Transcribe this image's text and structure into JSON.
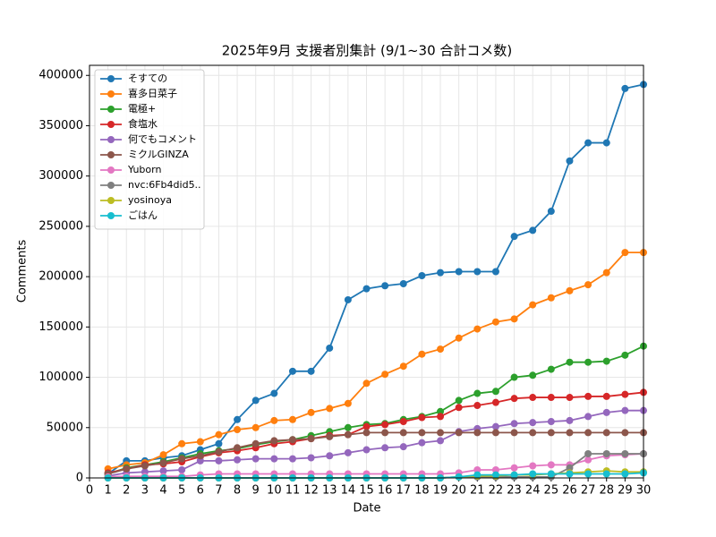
{
  "chart_data": {
    "type": "line",
    "title": "2025年9月 支援者別集計 (9/1~30 合計コメ数)",
    "x_label": "Date",
    "y_label": "Comments",
    "x": [
      1,
      2,
      3,
      4,
      5,
      6,
      7,
      8,
      9,
      10,
      11,
      12,
      13,
      14,
      15,
      16,
      17,
      18,
      19,
      20,
      21,
      22,
      23,
      24,
      25,
      26,
      27,
      28,
      29,
      30
    ],
    "xlim": [
      0,
      30
    ],
    "xticks": [
      0,
      1,
      2,
      3,
      4,
      5,
      6,
      7,
      8,
      9,
      10,
      11,
      12,
      13,
      14,
      15,
      16,
      17,
      18,
      19,
      20,
      21,
      22,
      23,
      24,
      25,
      26,
      27,
      28,
      29,
      30
    ],
    "ylim": [
      0,
      410000
    ],
    "yticks": [
      0,
      50000,
      100000,
      150000,
      200000,
      250000,
      300000,
      350000,
      400000
    ],
    "grid": true,
    "legend": "upper-left",
    "series": [
      {
        "name": "そすての",
        "color": "#1f77b4",
        "values": [
          4000,
          17000,
          17000,
          20000,
          22000,
          28000,
          34000,
          58000,
          77000,
          84000,
          106000,
          106000,
          129000,
          177000,
          188000,
          191000,
          193000,
          201000,
          204000,
          205000,
          205000,
          205000,
          240000,
          246000,
          265000,
          315000,
          333000,
          333000,
          387000,
          391000
        ]
      },
      {
        "name": "喜多日菜子",
        "color": "#ff7f0e",
        "values": [
          9000,
          13000,
          15000,
          23000,
          34000,
          36000,
          43000,
          48000,
          50000,
          57000,
          58000,
          65000,
          69000,
          74000,
          94000,
          103000,
          111000,
          123000,
          128000,
          139000,
          148000,
          155000,
          158000,
          172000,
          179000,
          186000,
          192000,
          204000,
          224000,
          224000
        ]
      },
      {
        "name": "電極+",
        "color": "#2ca02c",
        "values": [
          4000,
          10000,
          13000,
          16000,
          20000,
          24000,
          27000,
          29000,
          33000,
          36000,
          38000,
          42000,
          46000,
          50000,
          53000,
          54000,
          58000,
          61000,
          66000,
          77000,
          84000,
          86000,
          100000,
          102000,
          108000,
          115000,
          115000,
          116000,
          122000,
          131000
        ]
      },
      {
        "name": "食塩水",
        "color": "#d62728",
        "values": [
          5000,
          9000,
          13000,
          14000,
          16000,
          21000,
          25000,
          27000,
          30000,
          34000,
          36000,
          39000,
          42000,
          43000,
          51000,
          53000,
          56000,
          60000,
          61000,
          70000,
          72000,
          75000,
          79000,
          80000,
          80000,
          80000,
          81000,
          81000,
          83000,
          85000
        ]
      },
      {
        "name": "何でもコメント",
        "color": "#9467bd",
        "values": [
          2000,
          5000,
          6000,
          7000,
          8000,
          17000,
          17000,
          18000,
          19000,
          19000,
          19000,
          20000,
          22000,
          25000,
          28000,
          30000,
          31000,
          35000,
          37000,
          46000,
          49000,
          51000,
          54000,
          55000,
          56000,
          57000,
          61000,
          65000,
          67000,
          67000
        ]
      },
      {
        "name": "ミクルGINZA",
        "color": "#8c564b",
        "values": [
          4000,
          9000,
          12000,
          15000,
          19000,
          22000,
          26000,
          30000,
          34000,
          37000,
          38000,
          39000,
          41000,
          43000,
          45000,
          45000,
          45000,
          45000,
          45000,
          45000,
          45000,
          45000,
          45000,
          45000,
          45000,
          45000,
          45000,
          45000,
          45000,
          45000
        ]
      },
      {
        "name": "Yuborn",
        "color": "#e377c2",
        "values": [
          1000,
          1500,
          1500,
          1500,
          1500,
          3000,
          4000,
          4000,
          4000,
          4000,
          4000,
          4000,
          4000,
          4000,
          4000,
          4000,
          4000,
          4000,
          4000,
          5000,
          8000,
          8000,
          10000,
          12000,
          13000,
          13000,
          18000,
          22000,
          23000,
          24000
        ]
      },
      {
        "name": "nvc:6Fb4did5..",
        "color": "#7f7f7f",
        "values": [
          0,
          0,
          0,
          0,
          0,
          0,
          0,
          0,
          0,
          0,
          0,
          0,
          0,
          0,
          0,
          0,
          0,
          0,
          0,
          1000,
          1000,
          1000,
          1000,
          1000,
          1000,
          10000,
          24000,
          24000,
          24000,
          24000
        ]
      },
      {
        "name": "yosinoya",
        "color": "#bcbd22",
        "values": [
          0,
          0,
          0,
          0,
          0,
          0,
          0,
          0,
          0,
          0,
          0,
          0,
          0,
          0,
          0,
          0,
          0,
          0,
          0,
          1000,
          2000,
          2000,
          3000,
          3000,
          4000,
          5000,
          6000,
          7000,
          6000,
          6000
        ]
      },
      {
        "name": "ごはん",
        "color": "#17becf",
        "values": [
          0,
          0,
          0,
          0,
          0,
          0,
          0,
          0,
          0,
          0,
          0,
          0,
          0,
          0,
          0,
          0,
          0,
          0,
          0,
          1000,
          3000,
          3000,
          3000,
          4000,
          4000,
          4000,
          4000,
          4000,
          4000,
          5000
        ]
      }
    ]
  }
}
